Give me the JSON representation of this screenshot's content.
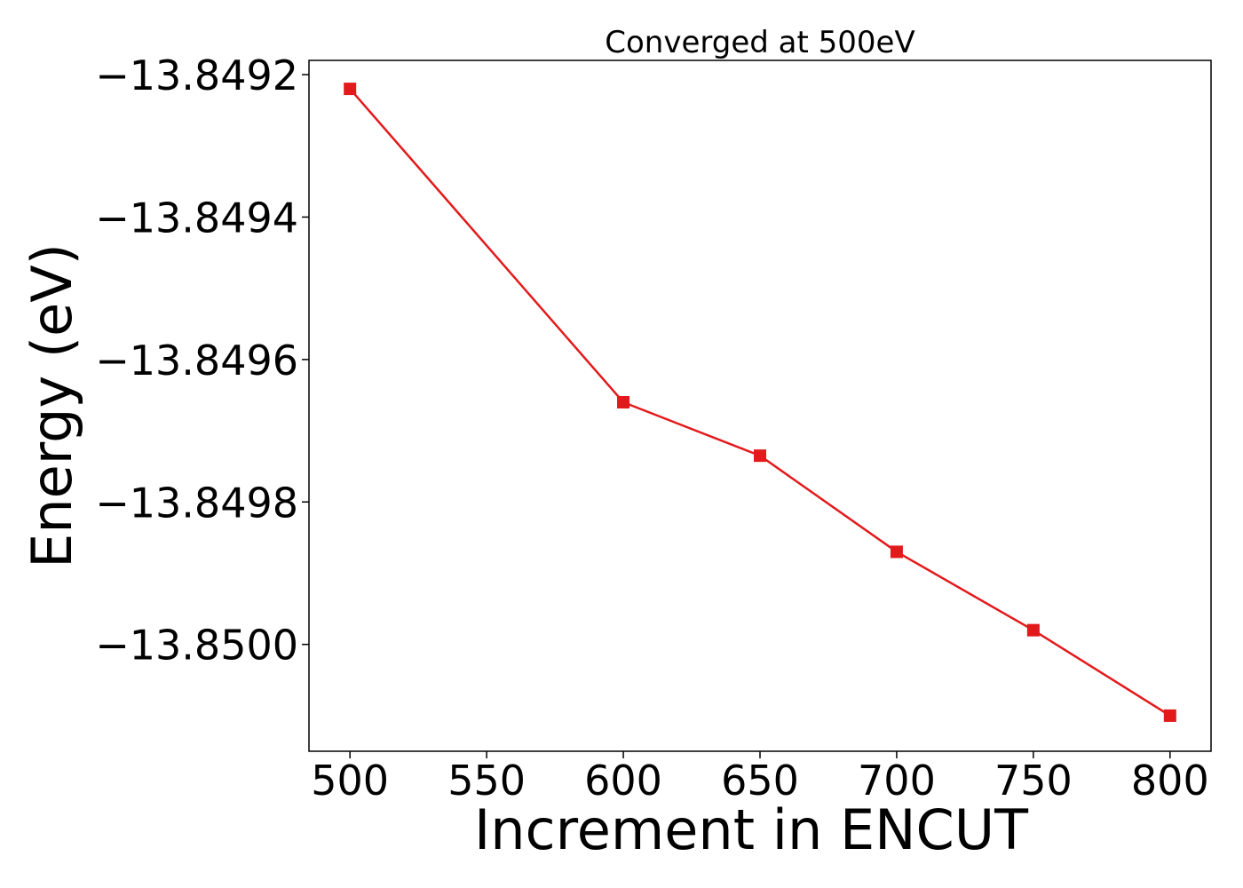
{
  "chart_data": {
    "type": "line",
    "title": "Converged at 500eV",
    "xlabel": "Increment in ENCUT",
    "ylabel": "Energy (eV)",
    "xlim": [
      485,
      815
    ],
    "ylim": [
      -13.85015,
      -13.84918
    ],
    "x_ticks": [
      500,
      550,
      600,
      650,
      700,
      750,
      800
    ],
    "x_tick_labels": [
      "500",
      "550",
      "600",
      "650",
      "700",
      "750",
      "800"
    ],
    "y_ticks": [
      -13.8492,
      -13.8494,
      -13.8496,
      -13.8498,
      -13.85
    ],
    "y_tick_labels": [
      "−13.8492",
      "−13.8494",
      "−13.8496",
      "−13.8498",
      "−13.8500"
    ],
    "grid": false,
    "series": [
      {
        "color": "#e31a1c",
        "marker": "square",
        "x": [
          500,
          600,
          650,
          700,
          750,
          800
        ],
        "y": [
          -13.84922,
          -13.84966,
          -13.849735,
          -13.84987,
          -13.84998,
          -13.8501
        ]
      }
    ]
  }
}
